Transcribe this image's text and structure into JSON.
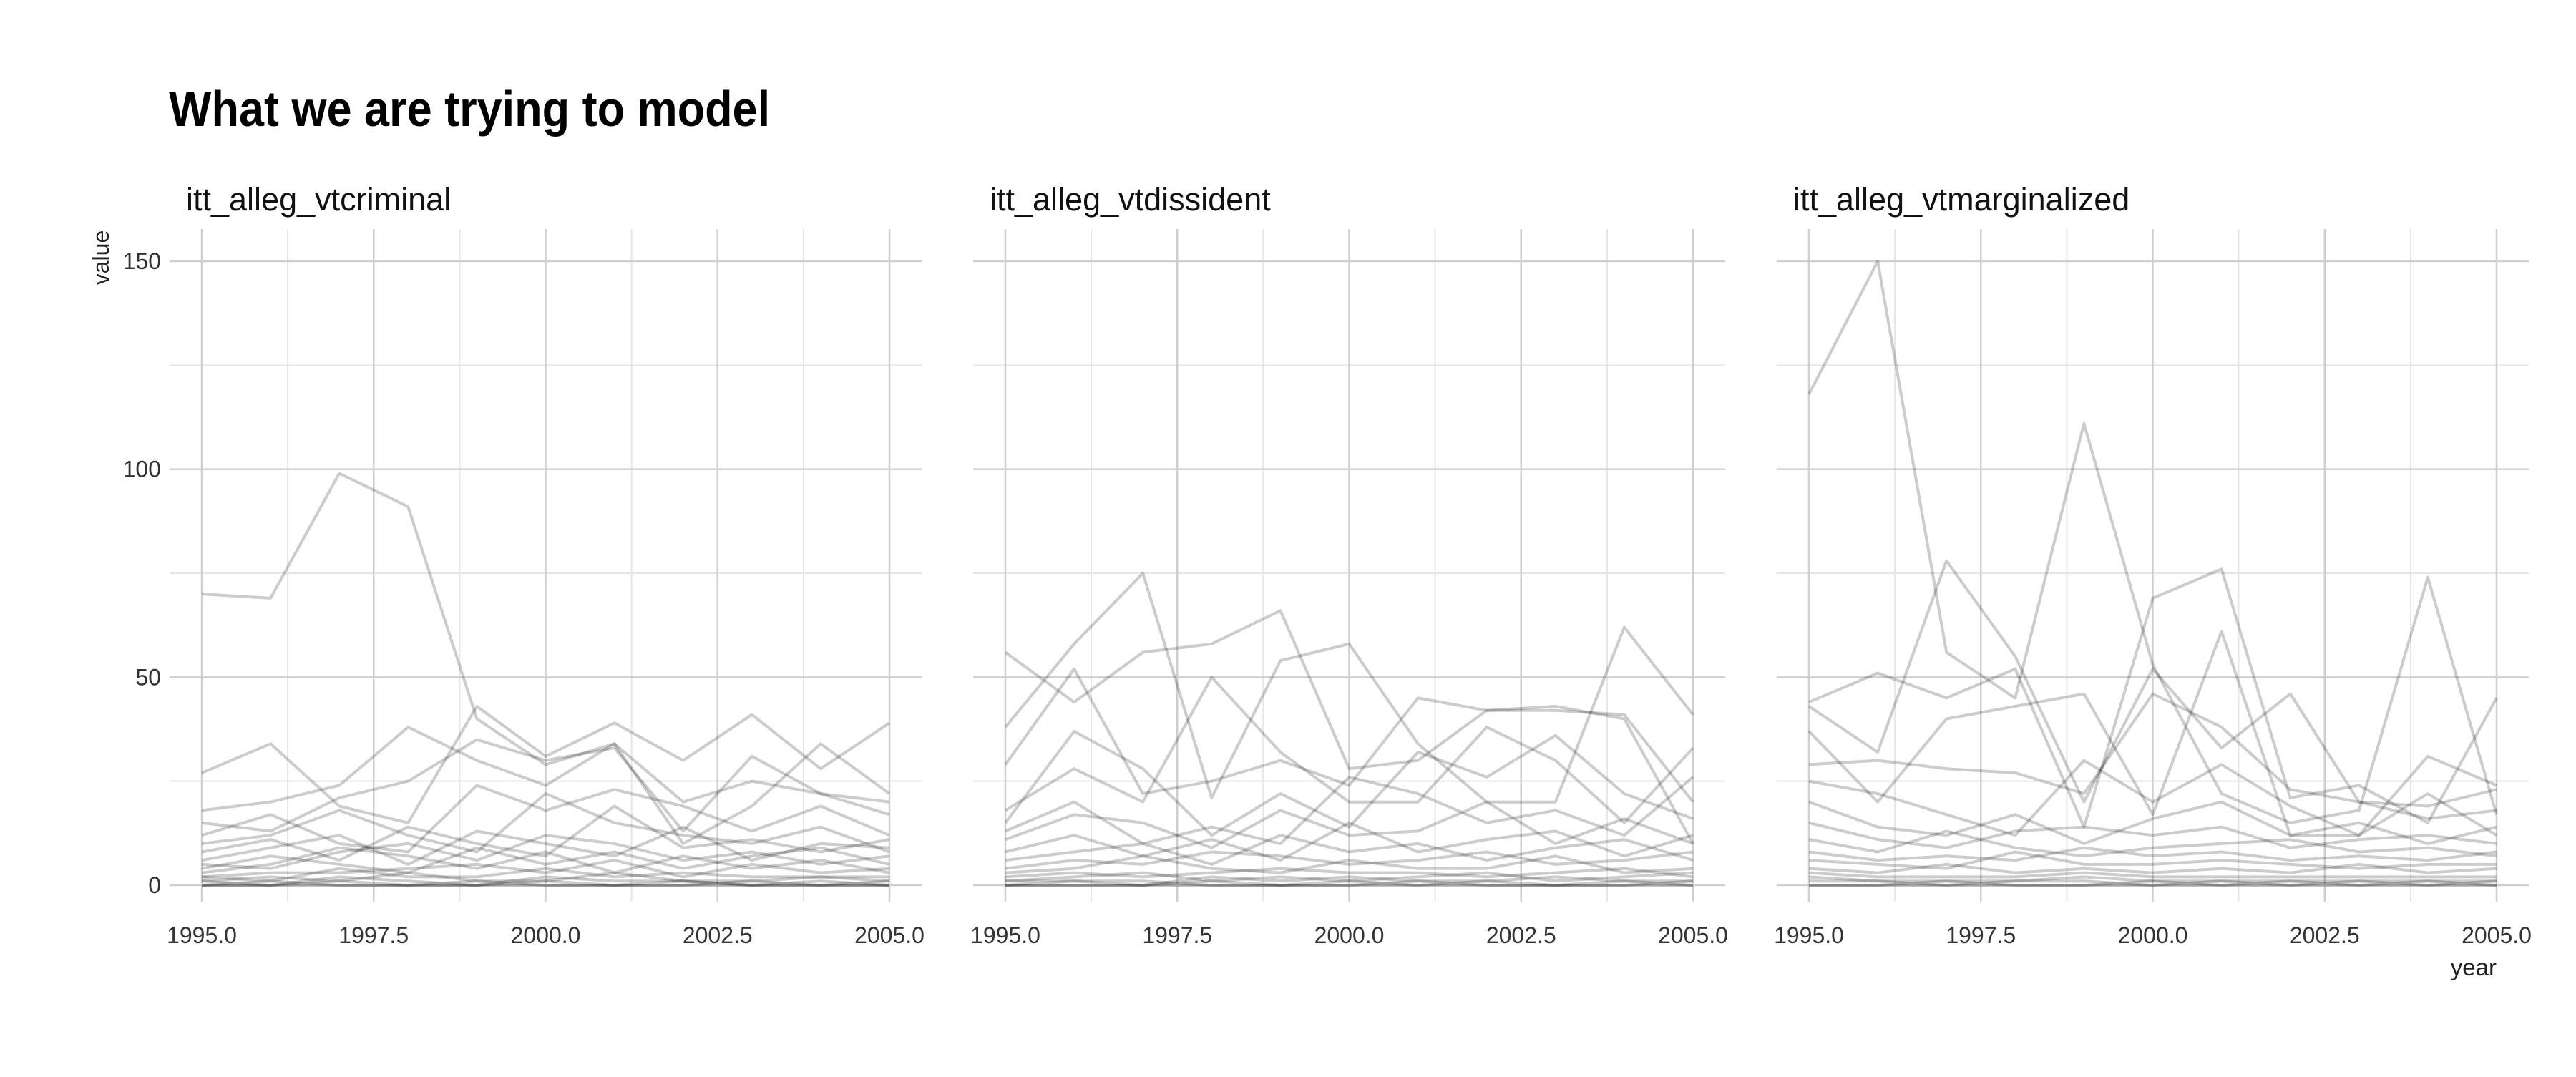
{
  "title": "What we are trying to model",
  "chart_data": {
    "type": "line",
    "title": "What we are trying to model",
    "xlabel": "year",
    "ylabel": "value",
    "xlim": [
      1995,
      2005
    ],
    "ylim": [
      0,
      150
    ],
    "x_ticks": [
      "1995.0",
      "1997.5",
      "2000.0",
      "2002.5",
      "2005.0"
    ],
    "y_ticks": [
      "0",
      "50",
      "100",
      "150"
    ],
    "grid": true,
    "line_color": "#000000",
    "line_opacity": 0.2,
    "years": [
      1995,
      1996,
      1997,
      1998,
      1999,
      2000,
      2001,
      2002,
      2003,
      2004,
      2005
    ],
    "note_on_series": "many overlapping translucent country series per panel; prominent series read from the plot are listed, dense low-valued series near 0 are approximated",
    "panels": [
      {
        "name": "itt_alleg_vtcriminal",
        "series": [
          {
            "values": [
              70,
              69,
              99,
              91,
              40,
              29,
              34,
              20,
              25,
              22,
              20
            ]
          },
          {
            "values": [
              27,
              34,
              19,
              15,
              43,
              31,
              39,
              30,
              41,
              28,
              39
            ]
          },
          {
            "values": [
              18,
              20,
              24,
              38,
              30,
              24,
              34,
              10,
              19,
              34,
              22
            ]
          },
          {
            "values": [
              15,
              13,
              21,
              25,
              35,
              30,
              33,
              13,
              31,
              22,
              17
            ]
          },
          {
            "values": [
              12,
              17,
              10,
              8,
              24,
              18,
              23,
              19,
              13,
              19,
              12
            ]
          },
          {
            "values": [
              10,
              12,
              18,
              12,
              8,
              22,
              15,
              12,
              10,
              14,
              8
            ]
          },
          {
            "values": [
              8,
              11,
              6,
              14,
              10,
              7,
              19,
              9,
              11,
              8,
              11
            ]
          },
          {
            "values": [
              6,
              9,
              12,
              5,
              13,
              10,
              7,
              14,
              6,
              10,
              9
            ]
          },
          {
            "values": [
              5,
              4,
              8,
              10,
              6,
              12,
              10,
              6,
              8,
              5,
              7
            ]
          },
          {
            "values": [
              4,
              7,
              5,
              3,
              9,
              5,
              8,
              4,
              7,
              9,
              5
            ]
          },
          {
            "values": [
              3,
              5,
              9,
              7,
              4,
              8,
              3,
              7,
              4,
              6,
              3
            ]
          },
          {
            "values": [
              2,
              3,
              3,
              4,
              5,
              3,
              6,
              2,
              5,
              3,
              4
            ]
          },
          {
            "values": [
              2,
              1,
              4,
              2,
              2,
              4,
              2,
              3,
              2,
              2,
              2
            ]
          },
          {
            "values": [
              1,
              2,
              1,
              3,
              1,
              1,
              3,
              1,
              1,
              2,
              1
            ]
          },
          {
            "values": [
              1,
              0,
              2,
              1,
              0,
              2,
              1,
              1,
              0,
              1,
              0
            ]
          },
          {
            "values": [
              0,
              1,
              0,
              0,
              1,
              0,
              0,
              1,
              0,
              0,
              1
            ]
          },
          {
            "values": [
              0,
              0,
              1,
              0,
              0,
              1,
              0,
              0,
              1,
              0,
              0
            ]
          },
          {
            "values": [
              0,
              0,
              0,
              0,
              0,
              0,
              0,
              0,
              0,
              0,
              0
            ]
          }
        ]
      },
      {
        "name": "itt_alleg_vtdissident",
        "series": [
          {
            "values": [
              56,
              44,
              56,
              58,
              66,
              28,
              30,
              42,
              43,
              40,
              10
            ]
          },
          {
            "values": [
              38,
              58,
              75,
              21,
              54,
              58,
              34,
              20,
              20,
              62,
              41
            ]
          },
          {
            "values": [
              29,
              52,
              22,
              25,
              30,
              24,
              45,
              42,
              42,
              41,
              20
            ]
          },
          {
            "values": [
              18,
              28,
              20,
              50,
              32,
              20,
              20,
              38,
              30,
              15,
              33
            ]
          },
          {
            "values": [
              15,
              37,
              28,
              12,
              22,
              14,
              32,
              26,
              36,
              22,
              16
            ]
          },
          {
            "values": [
              13,
              20,
              10,
              14,
              10,
              26,
              22,
              15,
              18,
              12,
              26
            ]
          },
          {
            "values": [
              11,
              17,
              15,
              9,
              18,
              12,
              13,
              20,
              10,
              16,
              10
            ]
          },
          {
            "values": [
              8,
              12,
              7,
              11,
              6,
              15,
              8,
              11,
              13,
              7,
              12
            ]
          },
          {
            "values": [
              6,
              8,
              10,
              5,
              12,
              8,
              10,
              6,
              9,
              11,
              6
            ]
          },
          {
            "values": [
              4,
              6,
              5,
              8,
              7,
              5,
              6,
              8,
              5,
              6,
              8
            ]
          },
          {
            "values": [
              3,
              4,
              7,
              4,
              3,
              6,
              4,
              4,
              7,
              3,
              4
            ]
          },
          {
            "values": [
              2,
              3,
              2,
              3,
              4,
              3,
              3,
              2,
              3,
              4,
              2
            ]
          },
          {
            "values": [
              1,
              2,
              3,
              1,
              2,
              1,
              2,
              3,
              1,
              2,
              3
            ]
          },
          {
            "values": [
              1,
              1,
              0,
              2,
              1,
              2,
              1,
              1,
              2,
              1,
              1
            ]
          },
          {
            "values": [
              0,
              1,
              1,
              0,
              0,
              1,
              0,
              1,
              0,
              0,
              1
            ]
          },
          {
            "values": [
              0,
              0,
              0,
              1,
              0,
              0,
              1,
              0,
              0,
              1,
              0
            ]
          },
          {
            "values": [
              0,
              0,
              0,
              0,
              0,
              0,
              0,
              0,
              0,
              0,
              0
            ]
          }
        ]
      },
      {
        "name": "itt_alleg_vtmarginalized",
        "series": [
          {
            "values": [
              118,
              150,
              56,
              45,
              111,
              53,
              22,
              15,
              18,
              74,
              17
            ]
          },
          {
            "values": [
              44,
              51,
              45,
              52,
              14,
              69,
              76,
              21,
              24,
              15,
              45
            ]
          },
          {
            "values": [
              43,
              32,
              78,
              55,
              20,
              52,
              33,
              46,
              20,
              19,
              23
            ]
          },
          {
            "values": [
              37,
              20,
              40,
              43,
              46,
              17,
              61,
              12,
              12,
              31,
              24
            ]
          },
          {
            "values": [
              29,
              30,
              28,
              27,
              22,
              46,
              38,
              23,
              20,
              16,
              18
            ]
          },
          {
            "values": [
              25,
              22,
              17,
              12,
              30,
              20,
              29,
              19,
              12,
              22,
              12
            ]
          },
          {
            "values": [
              20,
              14,
              12,
              17,
              10,
              16,
              20,
              12,
              15,
              10,
              14
            ]
          },
          {
            "values": [
              15,
              11,
              9,
              13,
              14,
              12,
              14,
              9,
              11,
              12,
              10
            ]
          },
          {
            "values": [
              11,
              8,
              13,
              9,
              7,
              9,
              10,
              11,
              8,
              9,
              7
            ]
          },
          {
            "values": [
              8,
              6,
              7,
              6,
              9,
              7,
              8,
              6,
              7,
              6,
              8
            ]
          },
          {
            "values": [
              6,
              5,
              4,
              8,
              5,
              5,
              6,
              5,
              4,
              5,
              5
            ]
          },
          {
            "values": [
              4,
              3,
              5,
              3,
              4,
              3,
              4,
              3,
              5,
              3,
              4
            ]
          },
          {
            "values": [
              3,
              2,
              2,
              2,
              3,
              2,
              2,
              2,
              2,
              2,
              2
            ]
          },
          {
            "values": [
              2,
              1,
              1,
              1,
              2,
              1,
              1,
              1,
              1,
              1,
              1
            ]
          },
          {
            "values": [
              1,
              1,
              0,
              1,
              1,
              0,
              1,
              0,
              1,
              0,
              1
            ]
          },
          {
            "values": [
              0,
              0,
              1,
              0,
              0,
              1,
              0,
              1,
              0,
              1,
              0
            ]
          },
          {
            "values": [
              0,
              0,
              0,
              0,
              0,
              0,
              0,
              0,
              0,
              0,
              0
            ]
          }
        ]
      }
    ]
  }
}
